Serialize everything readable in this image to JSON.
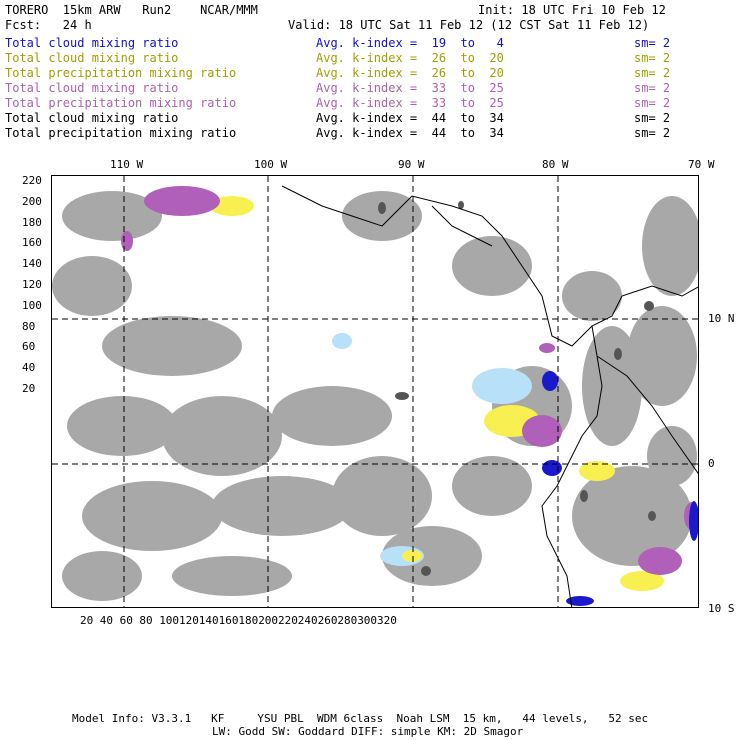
{
  "header": {
    "model": "TORERO  15km ARW   Run2    NCAR/MMM",
    "init": "Init: 18 UTC Fri 10 Feb 12",
    "fcst": "Fcst:   24 h",
    "valid": "Valid: 18 UTC Sat 11 Feb 12 (12 CST Sat 11 Feb 12)"
  },
  "legend": [
    {
      "field": "Total cloud mixing ratio",
      "avg": "Avg. k-index =  19  to   4",
      "sm": "sm= 2",
      "color": "#1010c8"
    },
    {
      "field": "Total cloud mixing ratio",
      "avg": "Avg. k-index =  26  to  20",
      "sm": "sm= 2",
      "color": "#a0a000"
    },
    {
      "field": "Total precipitation mixing ratio",
      "avg": "Avg. k-index =  26  to  20",
      "sm": "sm= 2",
      "color": "#a0a000"
    },
    {
      "field": "Total cloud mixing ratio",
      "avg": "Avg. k-index =  33  to  25",
      "sm": "sm= 2",
      "color": "#b060b0"
    },
    {
      "field": "Total precipitation mixing ratio",
      "avg": "Avg. k-index =  33  to  25",
      "sm": "sm= 2",
      "color": "#b060b0"
    },
    {
      "field": "Total cloud mixing ratio",
      "avg": "Avg. k-index =  44  to  34",
      "sm": "sm= 2",
      "color": "#000000"
    },
    {
      "field": "Total precipitation mixing ratio",
      "avg": "Avg. k-index =  44  to  34",
      "sm": "sm= 2",
      "color": "#000000"
    }
  ],
  "map": {
    "lon_labels": [
      "110 W",
      "100 W",
      "90 W",
      "80 W",
      "70 W"
    ],
    "lat_labels": [
      "10 N",
      "0",
      "10 S"
    ],
    "x_ticks": [
      "20",
      "40",
      "60",
      "80",
      "100",
      "120",
      "140",
      "160",
      "180",
      "200",
      "220",
      "240",
      "260",
      "280",
      "300",
      "320"
    ],
    "y_ticks": [
      "220",
      "200",
      "180",
      "160",
      "140",
      "120",
      "100",
      "80",
      "60",
      "40",
      "20"
    ]
  },
  "footer": {
    "line1": "Model Info: V3.3.1   KF     YSU PBL  WDM 6class  Noah LSM  15 km,   44 levels,   52 sec",
    "line2": "LW: Godd SW: Goddard DIFF: simple KM: 2D Smagor"
  },
  "colors": {
    "cloud_gray": "#a8a8a8",
    "dark_gray": "#606060",
    "blue": "#1a1acc",
    "light_blue": "#b8e0f8",
    "yellow": "#f8f050",
    "purple": "#b060b8"
  }
}
